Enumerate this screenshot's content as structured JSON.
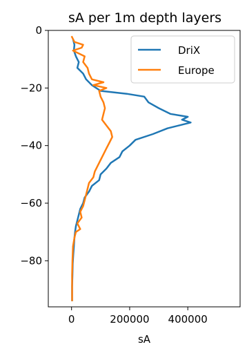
{
  "chart_data": {
    "type": "line",
    "title": "sA per 1m depth layers",
    "xlabel": "sA",
    "ylabel": "",
    "xlim": [
      -80000,
      580000
    ],
    "ylim": [
      -96,
      0
    ],
    "x_ticks": [
      {
        "value": 0,
        "label": "0"
      },
      {
        "value": 200000,
        "label": "200000"
      },
      {
        "value": 400000,
        "label": "400000"
      }
    ],
    "y_ticks": [
      {
        "value": 0,
        "label": "0"
      },
      {
        "value": -20,
        "label": "−20"
      },
      {
        "value": -40,
        "label": "−40"
      },
      {
        "value": -60,
        "label": "−60"
      },
      {
        "value": -80,
        "label": "−80"
      }
    ],
    "grid": false,
    "legend_position": "top-right",
    "series": [
      {
        "name": "DriX",
        "color": "#1f77b4",
        "points": [
          [
            5000,
            -3
          ],
          [
            10000,
            -5
          ],
          [
            8000,
            -7
          ],
          [
            15000,
            -9
          ],
          [
            25000,
            -11
          ],
          [
            20000,
            -13
          ],
          [
            40000,
            -15
          ],
          [
            50000,
            -17
          ],
          [
            70000,
            -19
          ],
          [
            100000,
            -21
          ],
          [
            190000,
            -22
          ],
          [
            250000,
            -23
          ],
          [
            265000,
            -25
          ],
          [
            300000,
            -27
          ],
          [
            340000,
            -29
          ],
          [
            400000,
            -30
          ],
          [
            380000,
            -31
          ],
          [
            410000,
            -32
          ],
          [
            330000,
            -34
          ],
          [
            280000,
            -36
          ],
          [
            220000,
            -38
          ],
          [
            200000,
            -40
          ],
          [
            175000,
            -42
          ],
          [
            165000,
            -44
          ],
          [
            135000,
            -46
          ],
          [
            120000,
            -48
          ],
          [
            100000,
            -50
          ],
          [
            95000,
            -52
          ],
          [
            70000,
            -54
          ],
          [
            60000,
            -56
          ],
          [
            45000,
            -58
          ],
          [
            40000,
            -60
          ],
          [
            30000,
            -62
          ],
          [
            25000,
            -64
          ],
          [
            20000,
            -66
          ],
          [
            15000,
            -68
          ],
          [
            12000,
            -70
          ],
          [
            10000,
            -72
          ],
          [
            8000,
            -75
          ],
          [
            6000,
            -78
          ],
          [
            4000,
            -81
          ],
          [
            3000,
            -85
          ],
          [
            2000,
            -89
          ],
          [
            2000,
            -94
          ]
        ]
      },
      {
        "name": "Europe",
        "color": "#ff7f0e",
        "points": [
          [
            0,
            -2
          ],
          [
            10000,
            -4
          ],
          [
            40000,
            -5
          ],
          [
            35000,
            -6
          ],
          [
            5000,
            -7
          ],
          [
            45000,
            -9
          ],
          [
            40000,
            -11
          ],
          [
            55000,
            -13
          ],
          [
            60000,
            -15
          ],
          [
            70000,
            -17
          ],
          [
            110000,
            -18
          ],
          [
            75000,
            -19
          ],
          [
            120000,
            -20
          ],
          [
            95000,
            -21
          ],
          [
            100000,
            -23
          ],
          [
            110000,
            -25
          ],
          [
            115000,
            -27
          ],
          [
            110000,
            -29
          ],
          [
            105000,
            -31
          ],
          [
            120000,
            -33
          ],
          [
            135000,
            -35
          ],
          [
            140000,
            -37
          ],
          [
            130000,
            -39
          ],
          [
            120000,
            -41
          ],
          [
            110000,
            -43
          ],
          [
            100000,
            -45
          ],
          [
            90000,
            -47
          ],
          [
            80000,
            -49
          ],
          [
            75000,
            -51
          ],
          [
            60000,
            -53
          ],
          [
            55000,
            -55
          ],
          [
            50000,
            -57
          ],
          [
            45000,
            -59
          ],
          [
            40000,
            -61
          ],
          [
            30000,
            -63
          ],
          [
            35000,
            -65
          ],
          [
            20000,
            -67
          ],
          [
            30000,
            -69
          ],
          [
            15000,
            -70
          ],
          [
            10000,
            -72
          ],
          [
            5000,
            -75
          ],
          [
            3000,
            -80
          ],
          [
            2000,
            -85
          ],
          [
            2000,
            -94
          ]
        ]
      }
    ]
  }
}
